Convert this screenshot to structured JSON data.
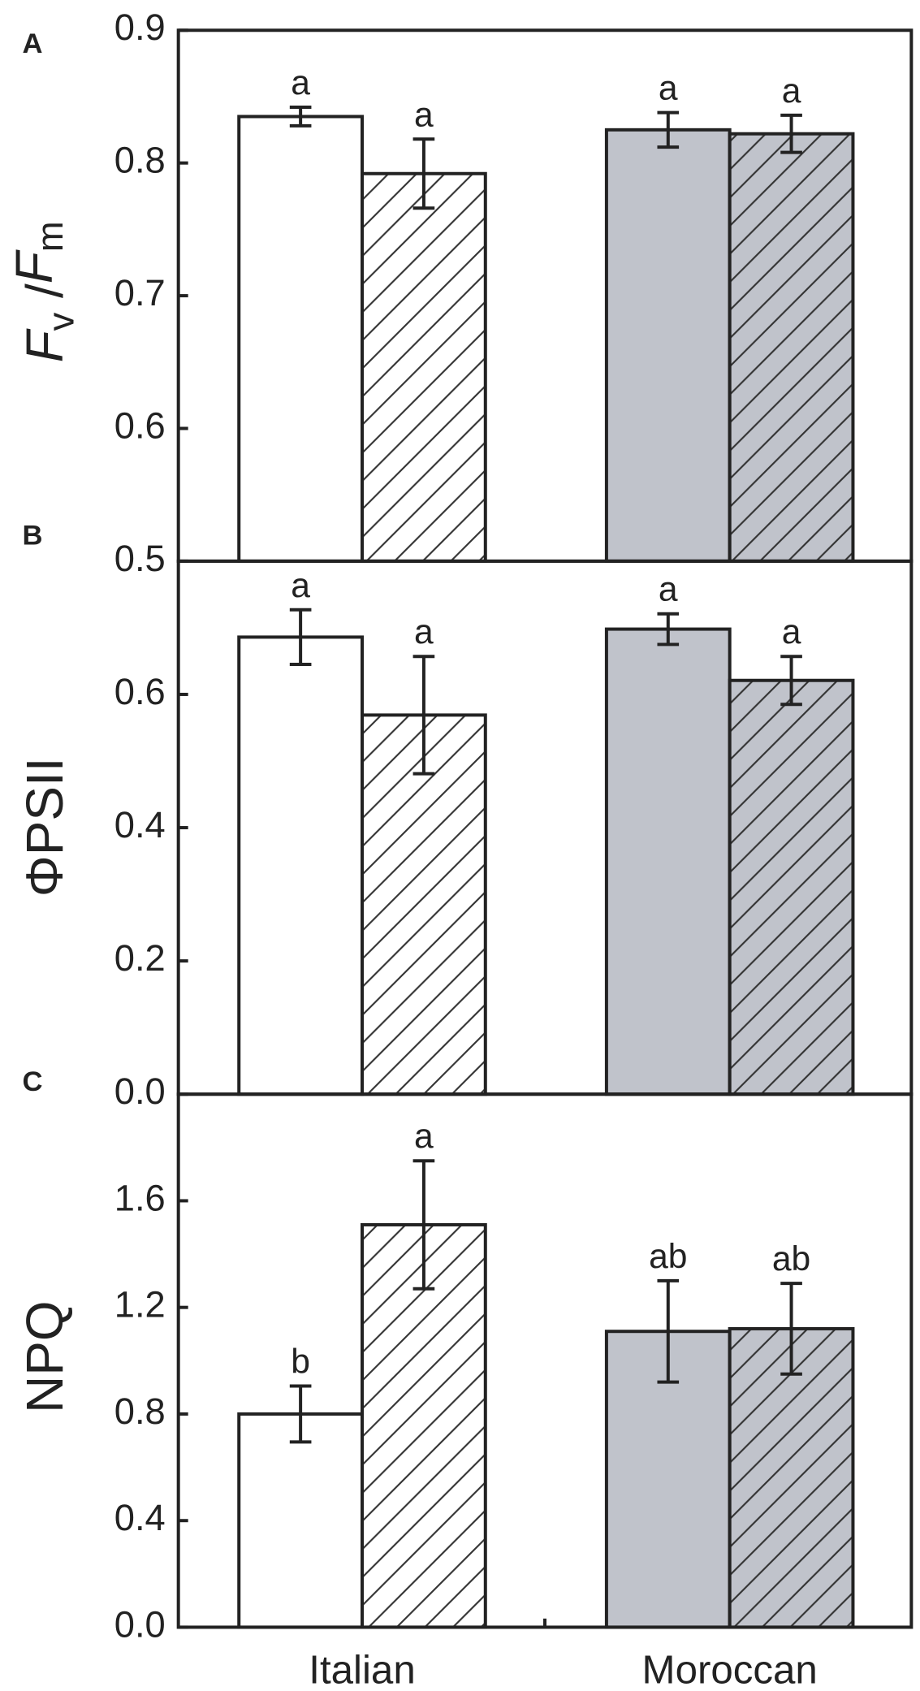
{
  "chart_data": [
    {
      "type": "bar",
      "panel": "A",
      "ylabel": [
        "F",
        "v",
        " /",
        "F",
        "m"
      ],
      "ylim": [
        0.5,
        0.9
      ],
      "yticks": [
        0.5,
        0.6,
        0.7,
        0.8,
        0.9
      ],
      "category_colors": [
        "#ffffff",
        "#c0c3cb"
      ],
      "series": [
        {
          "hatch": false,
          "values": [
            0.835,
            0.825
          ],
          "errors": [
            0.007,
            0.013
          ],
          "annotations": [
            "a",
            "a"
          ]
        },
        {
          "hatch": true,
          "values": [
            0.792,
            0.822
          ],
          "errors": [
            0.026,
            0.014
          ],
          "annotations": [
            "a",
            "a"
          ]
        }
      ]
    },
    {
      "type": "bar",
      "panel": "B",
      "ylabel": [
        "ΦPSII"
      ],
      "ylim": [
        0,
        0.8
      ],
      "yticks": [
        {
          "value": 0,
          "label": "0.0"
        },
        0.2,
        0.4,
        0.6
      ],
      "category_colors": [
        "#ffffff",
        "#c0c3cb"
      ],
      "series": [
        {
          "hatch": false,
          "values": [
            0.686,
            0.698
          ],
          "errors": [
            0.041,
            0.023
          ],
          "annotations": [
            "a",
            "a"
          ]
        },
        {
          "hatch": true,
          "values": [
            0.569,
            0.621
          ],
          "errors": [
            0.088,
            0.036
          ],
          "annotations": [
            "a",
            "a"
          ]
        }
      ]
    },
    {
      "type": "bar",
      "panel": "C",
      "ylabel": [
        "NPQ"
      ],
      "ylim": [
        0,
        2.0
      ],
      "yticks": [
        {
          "value": 0,
          "label": "0.0"
        },
        0.4,
        0.8,
        1.2,
        1.6
      ],
      "categories": [
        "Italian",
        "Moroccan"
      ],
      "category_colors": [
        "#ffffff",
        "#c0c3cb"
      ],
      "series": [
        {
          "hatch": false,
          "values": [
            0.8,
            1.11
          ],
          "errors": [
            0.105,
            0.19
          ],
          "annotations": [
            "b",
            "ab"
          ]
        },
        {
          "hatch": true,
          "values": [
            1.51,
            1.12
          ],
          "errors": [
            0.24,
            0.17
          ],
          "annotations": [
            "a",
            "ab"
          ]
        }
      ]
    }
  ]
}
